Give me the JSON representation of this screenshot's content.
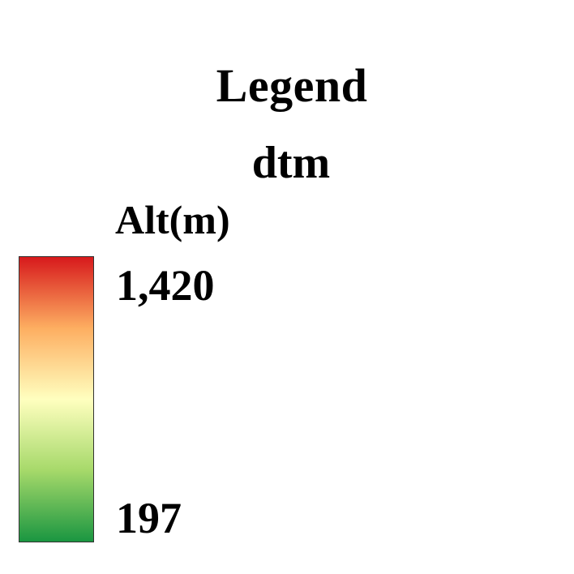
{
  "legend": {
    "title": "Legend",
    "layer_name": "dtm",
    "field_label": "Alt(m)",
    "high_label": "1,420",
    "low_label": "197",
    "ramp_colors": [
      "#d7191c",
      "#fdae61",
      "#ffffbf",
      "#a6d96a",
      "#1a9641"
    ]
  }
}
